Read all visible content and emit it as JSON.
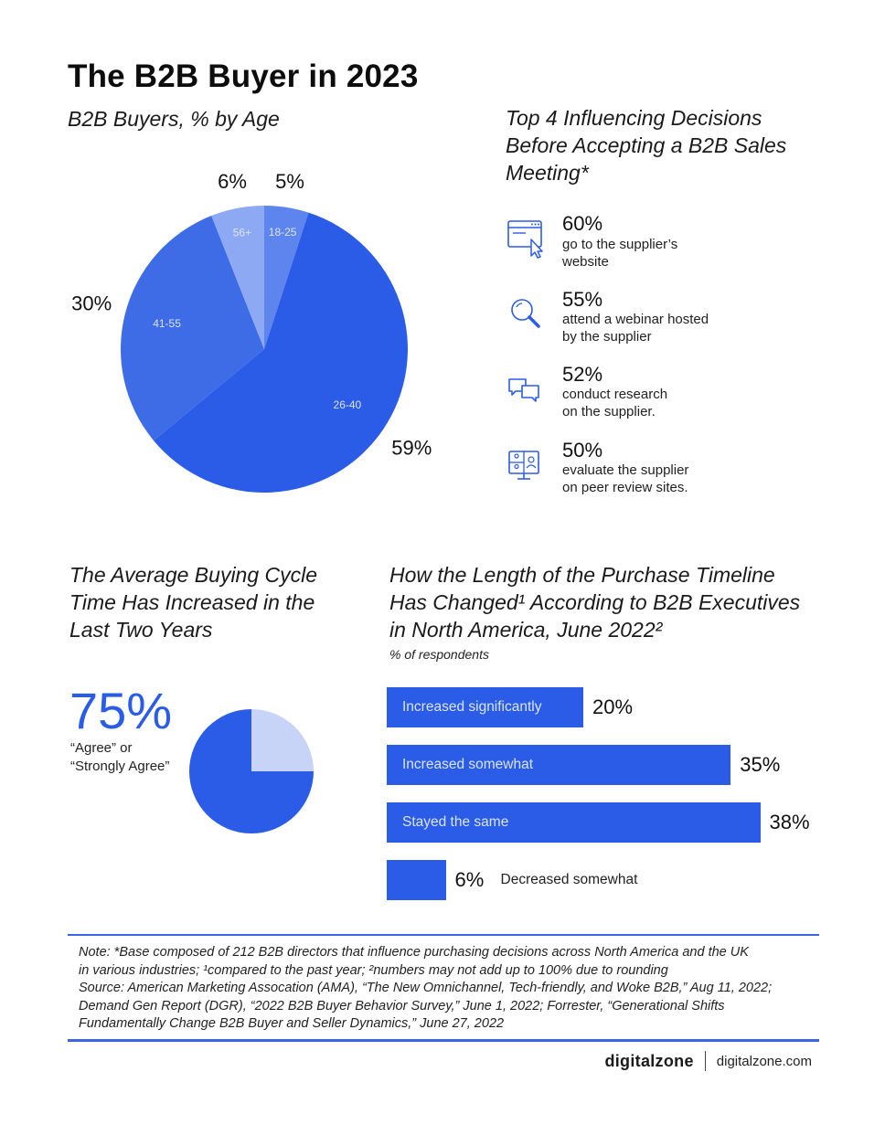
{
  "title": "The B2B Buyer in 2023",
  "age_section": {
    "title": "B2B Buyers, % by Age"
  },
  "influence_section": {
    "title_lines": [
      "Top 4 Influencing Decisions",
      "Before Accepting a B2B Sales",
      "Meeting*"
    ],
    "items": [
      {
        "pct": "60%",
        "desc_lines": [
          "go to the supplier’s",
          "website"
        ],
        "icon": "website-cursor-icon"
      },
      {
        "pct": "55%",
        "desc_lines": [
          "attend a webinar hosted",
          "by the supplier"
        ],
        "icon": "magnifier-icon"
      },
      {
        "pct": "52%",
        "desc_lines": [
          "conduct research",
          "on the supplier."
        ],
        "icon": "chat-bubbles-icon"
      },
      {
        "pct": "50%",
        "desc_lines": [
          "evaluate the supplier",
          "on peer review sites."
        ],
        "icon": "video-call-icon"
      }
    ]
  },
  "cycle_section": {
    "title_lines": [
      "The Average Buying Cycle",
      "Time Has Increased in the",
      "Last Two Years"
    ],
    "big_pct": "75%",
    "sub_lines": [
      "“Agree” or",
      "“Strongly Agree”"
    ]
  },
  "timeline_section": {
    "title_lines": [
      "How the Length of the Purchase Timeline",
      "Has Changed¹ According to B2B Executives",
      "in North America, June 2022²"
    ],
    "subtitle": "% of respondents"
  },
  "chart_data": [
    {
      "type": "pie",
      "title": "B2B Buyers, % by Age",
      "categories": [
        "26-40",
        "41-55",
        "56+",
        "18-25"
      ],
      "values": [
        59,
        30,
        6,
        5
      ],
      "value_labels": [
        "59%",
        "30%",
        "6%",
        "5%"
      ],
      "colors": [
        "#2a5ce8",
        "#3e6ce6",
        "#8ea9f3",
        "#5e84ee"
      ]
    },
    {
      "type": "pie",
      "title": "The Average Buying Cycle Time Has Increased in the Last Two Years",
      "categories": [
        "“Agree” or “Strongly Agree”",
        ""
      ],
      "values": [
        75,
        25
      ],
      "colors": [
        "#2a5ce8",
        "#c7d4f8"
      ]
    },
    {
      "type": "bar",
      "orientation": "horizontal",
      "title": "How the Length of the Purchase Timeline Has Changed¹ According to B2B Executives in North America, June 2022²",
      "subtitle": "% of respondents",
      "categories": [
        "Increased significantly",
        "Increased somewhat",
        "Stayed the same",
        "Decreased somewhat"
      ],
      "values": [
        20,
        35,
        38,
        6
      ],
      "value_labels": [
        "20%",
        "35%",
        "38%",
        "6%"
      ],
      "color": "#2a5ce8"
    }
  ],
  "note_lines": [
    "Note: *Base composed of 212 B2B directors that influence purchasing decisions across North America and the UK",
    "in various industries; ¹compared to the past year; ²numbers may not add up to 100% due to rounding",
    "Source: American Marketing Assocation (AMA), “The New Omnichannel, Tech-friendly, and Woke B2B,” Aug 11, 2022;",
    "Demand Gen Report (DGR), “2022 B2B Buyer Behavior Survey,” June 1, 2022; Forrester, “Generational Shifts",
    "Fundamentally Change B2B Buyer and Seller Dynamics,” June 27, 2022"
  ],
  "footer": {
    "logo": "digitalzone",
    "site": "digitalzone.com"
  },
  "colors": {
    "accent": "#2a5ce8",
    "light_accent": "#c7d4f8",
    "rule": "#3b64e6"
  }
}
